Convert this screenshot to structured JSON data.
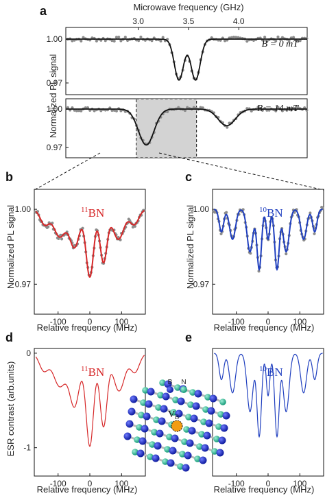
{
  "panels": {
    "a": "a",
    "b": "b",
    "c": "c",
    "d": "d",
    "e": "e"
  },
  "colors": {
    "axis": "#111111",
    "dots": "#8c8c8c",
    "fit_black": "#111111",
    "red": "#d62728",
    "blue": "#1f3fbf",
    "shade": "#d3d3d3",
    "boron": "#1c2bd6",
    "nitrogen": "#2ec7a0",
    "vacancy": "#f39c12"
  },
  "chart_data": [
    {
      "id": "a-top",
      "type": "scatter",
      "title": "Microwave frequency (GHz)",
      "xlabel": "Microwave frequency (GHz)",
      "ylabel": "Normalized PL signal",
      "xlim": [
        2.28,
        4.68
      ],
      "ylim": [
        0.962,
        1.008
      ],
      "xticks": [
        3.0,
        3.5,
        4.0
      ],
      "xticklabels": [
        "3.0",
        "3.5",
        "4.0"
      ],
      "yticks": [
        1.0,
        0.97
      ],
      "yticklabels": [
        "1.00",
        "0.97"
      ],
      "annotation": "B = 0 mT",
      "series": [
        {
          "kind": "dips",
          "baseline": 1.0,
          "dips": [
            {
              "center": 3.405,
              "depth": 0.028,
              "width": 0.065
            },
            {
              "center": 3.57,
              "depth": 0.028,
              "width": 0.065
            }
          ]
        }
      ]
    },
    {
      "id": "a-bottom",
      "type": "scatter",
      "xlim": [
        2.28,
        4.68
      ],
      "ylim": [
        0.962,
        1.008
      ],
      "yticks": [
        1.0,
        0.97
      ],
      "yticklabels": [
        "1.00",
        "0.97"
      ],
      "annotation": "B = 14 mT",
      "highlight_region": [
        2.98,
        3.58
      ],
      "series": [
        {
          "kind": "dips",
          "baseline": 1.0,
          "dips": [
            {
              "center": 3.08,
              "depth": 0.028,
              "width": 0.11
            },
            {
              "center": 3.88,
              "depth": 0.013,
              "width": 0.12
            }
          ]
        }
      ]
    },
    {
      "id": "b",
      "type": "line",
      "xlabel": "Relative frequency (MHz)",
      "ylabel": "Normalized PL signal",
      "xlim": [
        -175,
        175
      ],
      "ylim": [
        0.958,
        1.008
      ],
      "xticks": [
        -100,
        0,
        100
      ],
      "xticklabels": [
        "-100",
        "0",
        "100"
      ],
      "yticks": [
        1.0,
        0.97
      ],
      "yticklabels": [
        "1.00",
        "0.97"
      ],
      "label": "h11BN",
      "label_parts": {
        "sup": "11",
        "base": "BN"
      },
      "series": [
        {
          "color": "#d62728",
          "peaks": [
            [
              -142,
              0.006,
              20
            ],
            [
              -95,
              0.011,
              26
            ],
            [
              -48,
              0.015,
              22
            ],
            [
              0,
              0.027,
              17
            ],
            [
              43,
              0.021,
              16
            ],
            [
              90,
              0.012,
              25
            ],
            [
              140,
              0.006,
              20
            ]
          ]
        }
      ]
    },
    {
      "id": "c",
      "type": "line",
      "xlabel": "Relative frequency (MHz)",
      "ylabel": "Normalized PL signal",
      "xlim": [
        -175,
        175
      ],
      "ylim": [
        0.958,
        1.008
      ],
      "xticks": [
        -100,
        0,
        100
      ],
      "xticklabels": [
        "-100",
        "0",
        "100"
      ],
      "yticks": [
        1.0,
        0.97
      ],
      "yticklabels": [
        "1.00",
        "0.97"
      ],
      "label": "h10BN",
      "label_parts": {
        "sup": "10",
        "base": "BN"
      },
      "series": [
        {
          "color": "#1f3fbf",
          "peaks": [
            [
              -147,
              0.009,
              10
            ],
            [
              -112,
              0.012,
              13
            ],
            [
              -57,
              0.017,
              13
            ],
            [
              -28,
              0.024,
              10
            ],
            [
              0,
              0.012,
              8
            ],
            [
              28,
              0.024,
              10
            ],
            [
              57,
              0.017,
              13
            ],
            [
              112,
              0.012,
              13
            ],
            [
              147,
              0.009,
              10
            ]
          ]
        }
      ]
    },
    {
      "id": "d",
      "type": "line",
      "xlabel": "Relative frequency (MHz)",
      "ylabel": "ESR contrast (arb.units)",
      "xlim": [
        -175,
        175
      ],
      "ylim": [
        -1.3,
        0.05
      ],
      "xticks": [
        -100,
        0,
        100
      ],
      "xticklabels": [
        "-100",
        "0",
        "100"
      ],
      "yticks": [
        0,
        -1
      ],
      "yticklabels": [
        "0",
        "-1"
      ],
      "label": "h11BN",
      "label_parts": {
        "sup": "11",
        "base": "BN"
      },
      "series": [
        {
          "color": "#d62728",
          "peaks": [
            [
              -145,
              0.18,
              20
            ],
            [
              -95,
              0.35,
              28
            ],
            [
              -48,
              0.55,
              22
            ],
            [
              0,
              0.98,
              17
            ],
            [
              43,
              0.77,
              16
            ],
            [
              92,
              0.4,
              25
            ],
            [
              142,
              0.2,
              20
            ]
          ]
        }
      ]
    },
    {
      "id": "e",
      "type": "line",
      "xlabel": "Relative frequency (MHz)",
      "ylim": [
        -1.3,
        0.05
      ],
      "xlim": [
        -175,
        175
      ],
      "xticks": [
        -100,
        0,
        100
      ],
      "xticklabels": [
        "-100",
        "0",
        "100"
      ],
      "label": "h10BN",
      "label_parts": {
        "sup": "10",
        "base": "BN"
      },
      "series": [
        {
          "color": "#1f3fbf",
          "peaks": [
            [
              -147,
              0.28,
              10
            ],
            [
              -112,
              0.42,
              13
            ],
            [
              -57,
              0.62,
              13
            ],
            [
              -28,
              0.88,
              10
            ],
            [
              0,
              0.45,
              8
            ],
            [
              28,
              0.88,
              10
            ],
            [
              57,
              0.62,
              13
            ],
            [
              112,
              0.42,
              13
            ],
            [
              147,
              0.28,
              10
            ]
          ]
        }
      ]
    }
  ],
  "lattice": {
    "legend_b": "B",
    "legend_n": "N",
    "vacancy_label": "V",
    "vacancy_sub": "B"
  }
}
